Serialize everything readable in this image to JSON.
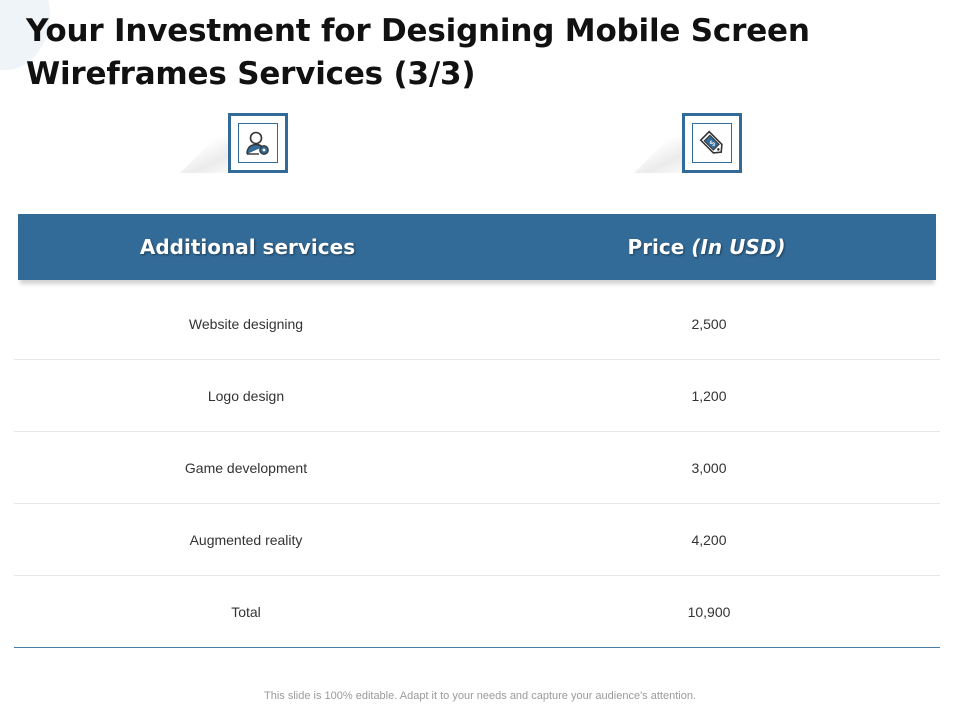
{
  "title": "Your Investment for Designing Mobile Screen Wireframes Services (3/3)",
  "icons": {
    "left": "user-settings-icon",
    "right": "price-tag-icon"
  },
  "colors": {
    "accent": "#336b98",
    "header_text": "#ffffff"
  },
  "table": {
    "headers": {
      "service": "Additional services",
      "price": "Price",
      "price_unit": "(In USD)"
    },
    "rows": [
      {
        "service": "Website designing",
        "price": "2,500"
      },
      {
        "service": "Logo design",
        "price": "1,200"
      },
      {
        "service": "Game development",
        "price": "3,000"
      },
      {
        "service": "Augmented reality",
        "price": "4,200"
      },
      {
        "service": "Total",
        "price": "10,900"
      }
    ]
  },
  "footer": "This slide is 100% editable. Adapt it to your needs and capture your audience's attention."
}
